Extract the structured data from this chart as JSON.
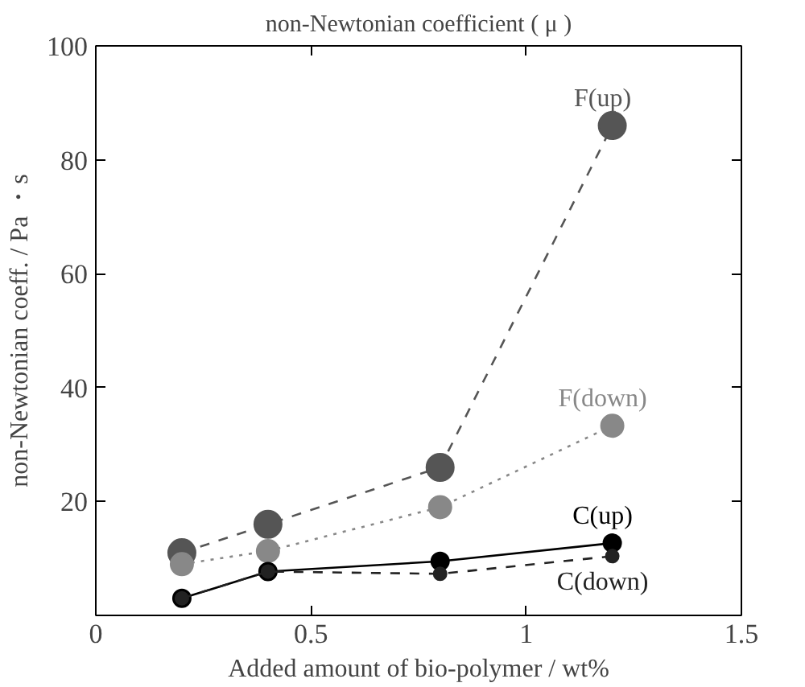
{
  "chart_data": {
    "type": "line",
    "title": "non-Newtonian coefficient ( μ )",
    "xlabel": "Added amount of bio-polymer / wt%",
    "ylabel": "non-Newtonian coeff. / Pa ・s",
    "x": [
      0.2,
      0.4,
      0.8,
      1.2
    ],
    "series": [
      {
        "name": "F(up)",
        "color": "#555555",
        "values": [
          11,
          16,
          26,
          86
        ],
        "line_style": "dashed"
      },
      {
        "name": "F(down)",
        "color": "#888888",
        "values": [
          9,
          11.3,
          19,
          33.3
        ],
        "line_style": "dotted"
      },
      {
        "name": "C(up)",
        "color": "#000000",
        "values": [
          3,
          7.7,
          9.5,
          12.7
        ],
        "line_style": "solid"
      },
      {
        "name": "C(down)",
        "color": "#222222",
        "values": [
          3,
          7.7,
          7.3,
          10.4
        ],
        "line_style": "dashed"
      }
    ],
    "marker": "circle",
    "legend": false,
    "grid": false,
    "xlim": [
      0,
      1.5
    ],
    "xticks": [
      0,
      0.5,
      1,
      1.5
    ],
    "ylim": [
      0,
      100
    ],
    "yticks": [
      {
        "value": 0,
        "label": null
      },
      20,
      40,
      60,
      80,
      100
    ]
  }
}
